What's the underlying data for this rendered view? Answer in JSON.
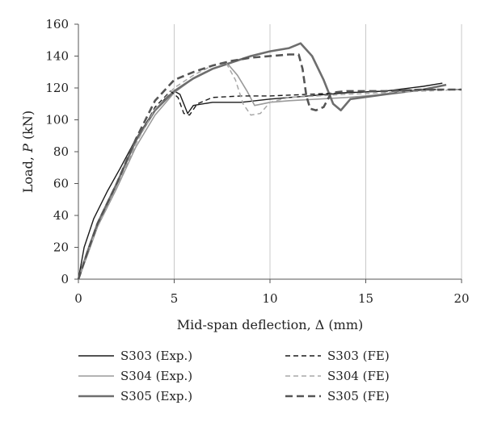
{
  "chart_data": {
    "type": "line",
    "xlabel": "Mid-span deflection, Δ (mm)",
    "ylabel_parts": [
      "Load, ",
      "P",
      " (kN)"
    ],
    "xlim": [
      0,
      20
    ],
    "ylim": [
      0,
      160
    ],
    "x_ticks": [
      0,
      5,
      10,
      15,
      20
    ],
    "y_ticks": [
      0,
      20,
      40,
      60,
      80,
      100,
      120,
      140,
      160
    ],
    "grid": "vertical",
    "legend_placement": "bottom",
    "series": [
      {
        "name": "S303 (Exp.)",
        "color": "#1a1a1a",
        "dash": "",
        "width": 1.4,
        "x": [
          0,
          0.3,
          0.8,
          1.5,
          2.2,
          3.0,
          3.8,
          4.5,
          5.0,
          5.3,
          5.5,
          5.7,
          6.0,
          7.0,
          8.5,
          10.0,
          12.0,
          14.0,
          16.0,
          18.0,
          19.0
        ],
        "y": [
          0,
          20,
          38,
          55,
          70,
          88,
          103,
          113,
          118,
          116,
          110,
          104,
          109,
          111,
          111,
          113,
          115,
          117,
          118,
          121,
          123
        ]
      },
      {
        "name": "S304 (Exp.)",
        "color": "#9a9a9a",
        "dash": "",
        "width": 1.6,
        "x": [
          0,
          0.5,
          1.0,
          2.0,
          3.0,
          4.0,
          5.0,
          6.0,
          7.0,
          7.8,
          8.3,
          8.8,
          9.2,
          9.6,
          10.0,
          11.0,
          12.5,
          14.0,
          16.0,
          18.0,
          19.2
        ],
        "y": [
          0,
          16,
          33,
          57,
          83,
          103,
          117,
          126,
          132,
          135,
          128,
          118,
          109,
          110,
          111,
          112,
          113,
          114,
          116,
          119,
          122
        ]
      },
      {
        "name": "S305 (Exp.)",
        "color": "#6e6e6e",
        "dash": "",
        "width": 2.6,
        "x": [
          0,
          0.5,
          1.0,
          2.0,
          3.0,
          4.0,
          5.0,
          6.0,
          7.0,
          8.0,
          9.0,
          10.0,
          11.0,
          11.6,
          12.2,
          12.8,
          13.3,
          13.7,
          14.2,
          16.0,
          18.0,
          19.2
        ],
        "y": [
          0,
          18,
          35,
          60,
          87,
          106,
          118,
          126,
          132,
          136,
          140,
          143,
          145,
          148,
          140,
          125,
          110,
          106,
          113,
          116,
          119,
          122
        ]
      },
      {
        "name": "S303 (FE)",
        "color": "#1a1a1a",
        "dash": "6,4",
        "width": 1.4,
        "x": [
          0,
          0.5,
          1.0,
          2.0,
          3.0,
          4.0,
          4.8,
          5.2,
          5.5,
          5.8,
          6.2,
          7.0,
          8.5,
          10.0,
          12.0,
          14.0,
          16.0,
          18.0,
          20.0
        ],
        "y": [
          0,
          17,
          33,
          58,
          85,
          108,
          118,
          114,
          104,
          103,
          110,
          114,
          115,
          115,
          116,
          117,
          118,
          119,
          119
        ]
      },
      {
        "name": "S304 (FE)",
        "color": "#a8a8a8",
        "dash": "6,4",
        "width": 1.5,
        "x": [
          0,
          0.5,
          1.0,
          2.0,
          3.0,
          4.0,
          5.0,
          6.0,
          7.0,
          7.7,
          8.2,
          8.6,
          9.0,
          9.5,
          10.0,
          11.0,
          12.5,
          14.0,
          16.0,
          18.0,
          20.0
        ],
        "y": [
          0,
          17,
          33,
          58,
          85,
          107,
          120,
          128,
          134,
          136,
          125,
          110,
          103,
          104,
          111,
          114,
          115,
          116,
          117,
          118,
          119
        ]
      },
      {
        "name": "S305 (FE)",
        "color": "#555555",
        "dash": "9,5",
        "width": 2.6,
        "x": [
          0,
          0.5,
          1.0,
          2.0,
          3.0,
          4.0,
          5.0,
          6.0,
          7.0,
          8.0,
          9.0,
          10.0,
          11.0,
          11.5,
          11.7,
          11.9,
          12.1,
          12.4,
          12.8,
          13.2,
          14.0,
          16.0,
          18.0,
          20.0
        ],
        "y": [
          0,
          18,
          35,
          60,
          88,
          112,
          125,
          130,
          134,
          137,
          139,
          140,
          141,
          141,
          132,
          115,
          107,
          106,
          108,
          117,
          118,
          118,
          119,
          119
        ]
      }
    ]
  }
}
